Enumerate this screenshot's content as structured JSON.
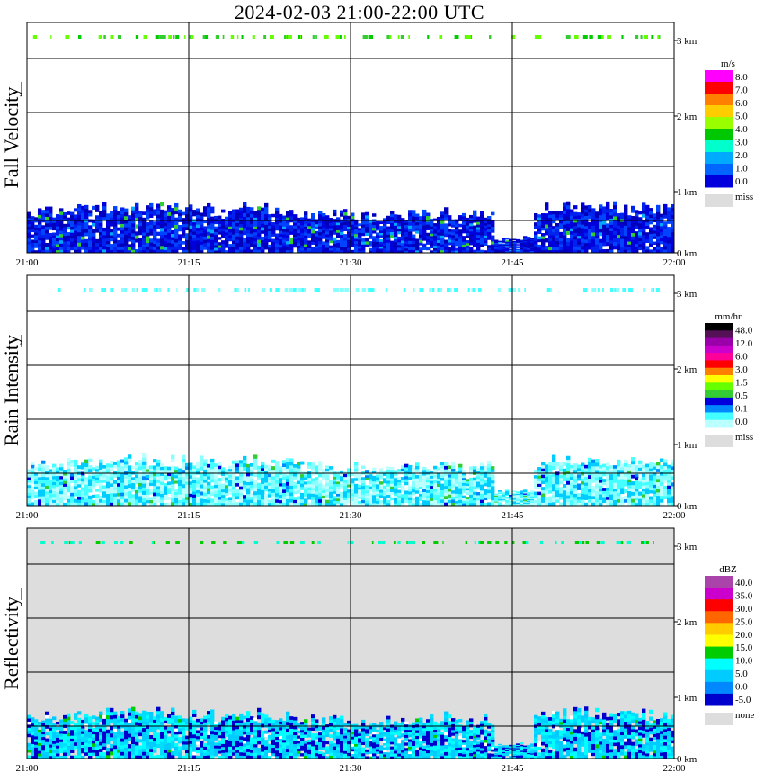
{
  "title": "2024-02-03   21:00-22:00 UTC",
  "chart_data": [
    {
      "type": "heatmap",
      "ylabel": "Fall Velocity",
      "x_ticks": [
        "21:00",
        "21:15",
        "21:30",
        "21:45",
        "22:00"
      ],
      "y_ticks": [
        "0 km",
        "1 km",
        "2 km",
        "3 km"
      ],
      "xlim": [
        "21:00",
        "22:00"
      ],
      "ylim_km": [
        0,
        3.2
      ],
      "grid": true,
      "legend_position": "right",
      "colorbar": {
        "unit": "m/s",
        "labels": [
          "8.0",
          "7.0",
          "6.0",
          "5.0",
          "4.0",
          "3.0",
          "2.0",
          "1.0",
          "0.0"
        ],
        "colors": [
          "#ff00ff",
          "#ff0000",
          "#ff8000",
          "#ffcc00",
          "#99ff00",
          "#00c800",
          "#00ffcc",
          "#00aaff",
          "#0066ff",
          "#0000dd"
        ],
        "miss_label": "miss",
        "miss_color": "#dddddd"
      },
      "dominant_color": "#0022ee",
      "background": "#ffffff"
    },
    {
      "type": "heatmap",
      "ylabel": "Rain Intensity",
      "x_ticks": [
        "21:00",
        "21:15",
        "21:30",
        "21:45",
        "22:00"
      ],
      "y_ticks": [
        "0 km",
        "1 km",
        "2 km",
        "3 km"
      ],
      "xlim": [
        "21:00",
        "22:00"
      ],
      "ylim_km": [
        0,
        3.2
      ],
      "grid": true,
      "legend_position": "right",
      "colorbar": {
        "unit": "mm/hr",
        "labels": [
          "48.0",
          "12.0",
          "6.0",
          "3.0",
          "1.5",
          "0.5",
          "0.1",
          "0.0"
        ],
        "colors": [
          "#000000",
          "#551155",
          "#9900aa",
          "#cc00cc",
          "#ff0099",
          "#ff0000",
          "#ff8000",
          "#ffff00",
          "#66ff00",
          "#33cc33",
          "#0000dd",
          "#0088ff",
          "#44ffff",
          "#bbffff"
        ],
        "miss_label": "miss",
        "miss_color": "#dddddd"
      },
      "dominant_color": "#88ffff",
      "background": "#ffffff"
    },
    {
      "type": "heatmap",
      "ylabel": "Reflectivity",
      "x_ticks": [
        "21:00",
        "21:15",
        "21:30",
        "21:45",
        "22:00"
      ],
      "y_ticks": [
        "0 km",
        "1 km",
        "2 km",
        "3 km"
      ],
      "xlim": [
        "21:00",
        "22:00"
      ],
      "ylim_km": [
        0,
        3.2
      ],
      "grid": true,
      "legend_position": "right",
      "colorbar": {
        "unit": "dBZ",
        "labels": [
          "40.0",
          "35.0",
          "30.0",
          "25.0",
          "20.0",
          "15.0",
          "10.0",
          "5.0",
          "0.0",
          "-5.0"
        ],
        "colors": [
          "#aa44aa",
          "#cc00cc",
          "#ff0000",
          "#ff6600",
          "#ffcc00",
          "#ffff00",
          "#00cc00",
          "#00ffff",
          "#00ccff",
          "#0088ff",
          "#0000cc"
        ],
        "miss_label": "none",
        "miss_color": "#dddddd"
      },
      "dominant_color": "#00ddff",
      "background": "#dddddd"
    }
  ]
}
